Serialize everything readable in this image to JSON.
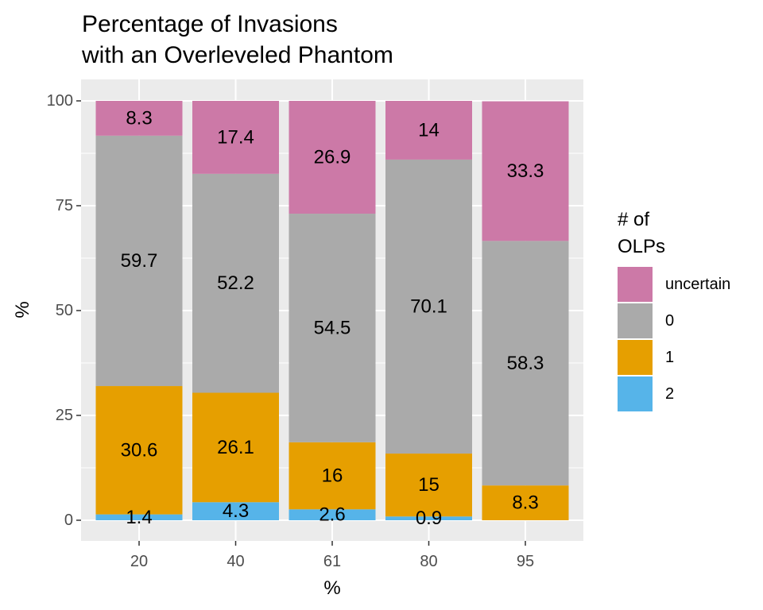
{
  "chart_data": {
    "type": "bar",
    "stacked": true,
    "title": [
      "Percentage of Invasions",
      "with an Overleveled Phantom"
    ],
    "xlabel": "%",
    "ylabel": "%",
    "categories": [
      "20",
      "40",
      "61",
      "80",
      "95"
    ],
    "ylim": [
      0,
      100
    ],
    "yticks": [
      0,
      25,
      50,
      75,
      100
    ],
    "grid": true,
    "legend": {
      "title": [
        "# of",
        "OLPs"
      ],
      "position": "right",
      "entries": [
        "uncertain",
        "0",
        "1",
        "2"
      ]
    },
    "series": [
      {
        "name": "2",
        "color": "#56B4E9",
        "values": [
          1.4,
          4.3,
          2.6,
          0.9,
          0
        ],
        "labels": [
          "1.4",
          "4.3",
          "2.6",
          "0.9",
          ""
        ]
      },
      {
        "name": "1",
        "color": "#E69F00",
        "values": [
          30.6,
          26.1,
          16,
          15,
          8.3
        ],
        "labels": [
          "30.6",
          "26.1",
          "16",
          "15",
          "8.3"
        ]
      },
      {
        "name": "0",
        "color": "#AAAAAA",
        "values": [
          59.7,
          52.2,
          54.5,
          70.1,
          58.3
        ],
        "labels": [
          "59.7",
          "52.2",
          "54.5",
          "70.1",
          "58.3"
        ]
      },
      {
        "name": "uncertain",
        "color": "#CC79A7",
        "values": [
          8.3,
          17.4,
          26.9,
          14,
          33.3
        ],
        "labels": [
          "8.3",
          "17.4",
          "26.9",
          "14",
          "33.3"
        ]
      }
    ],
    "panel_background": "#EBEBEB",
    "grid_color": "#FFFFFF"
  }
}
